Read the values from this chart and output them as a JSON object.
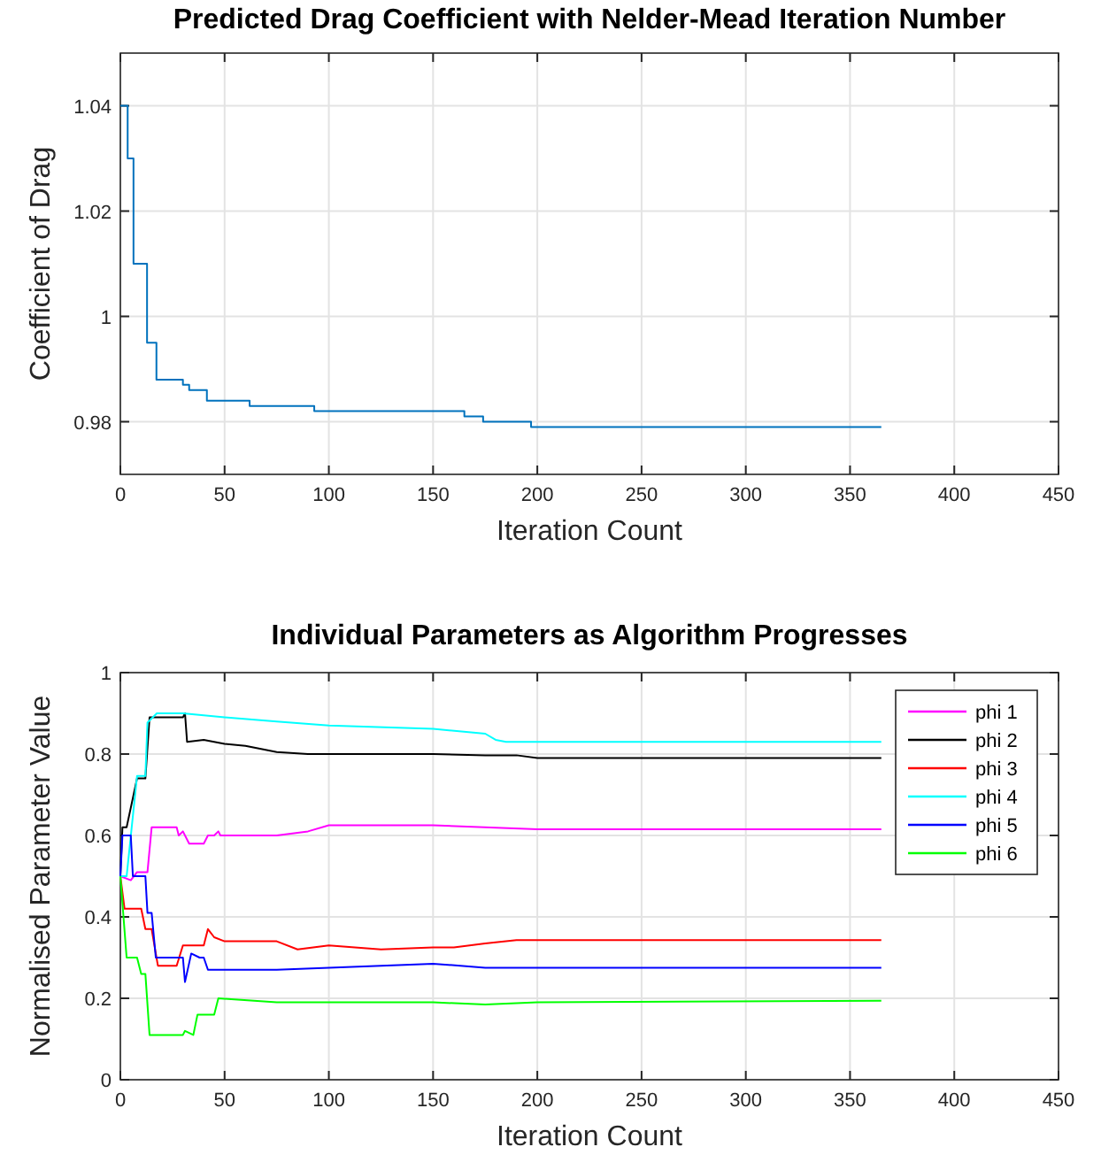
{
  "chart_data": [
    {
      "type": "step",
      "title": "Predicted Drag Coefficient with Nelder-Mead Iteration Number",
      "xlabel": "Iteration Count",
      "ylabel": "Coefficient of Drag",
      "x": [
        0,
        3.5,
        6.3,
        12.8,
        17.3,
        30,
        33,
        41.5,
        62,
        93,
        165,
        174,
        197,
        365
      ],
      "series": [
        {
          "color": "#0072bd",
          "values": [
            1.04,
            1.03,
            1.01,
            0.995,
            0.988,
            0.987,
            0.986,
            0.984,
            0.983,
            0.982,
            0.981,
            0.98,
            0.979,
            0.979
          ]
        }
      ],
      "xlim": [
        0,
        450
      ],
      "xticks": [
        0,
        50,
        100,
        150,
        200,
        250,
        300,
        350,
        400,
        450
      ],
      "ylim": [
        0.97,
        1.05
      ],
      "yticks": [
        0.98,
        1,
        1.02,
        1.04
      ],
      "grid": true,
      "legend": false
    },
    {
      "type": "line",
      "title": "Individual Parameters as Algorithm Progresses",
      "xlabel": "Iteration Count",
      "ylabel": "Normalised Parameter Value",
      "series": [
        {
          "name": "phi 1",
          "color": "#ff00ff",
          "x": [
            0,
            5,
            8,
            13,
            15,
            27,
            28,
            30,
            33,
            40,
            42,
            45,
            47,
            48,
            75,
            90,
            100,
            150,
            200,
            365
          ],
          "values": [
            0.5,
            0.49,
            0.51,
            0.51,
            0.62,
            0.62,
            0.6,
            0.61,
            0.58,
            0.58,
            0.6,
            0.6,
            0.61,
            0.6,
            0.6,
            0.61,
            0.625,
            0.625,
            0.615,
            0.615
          ]
        },
        {
          "name": "phi 2",
          "color": "#000000",
          "x": [
            0,
            1,
            3,
            8,
            12,
            14,
            30,
            31,
            32,
            40,
            50,
            60,
            75,
            90,
            100,
            125,
            150,
            175,
            190,
            200,
            365
          ],
          "values": [
            0.5,
            0.62,
            0.62,
            0.74,
            0.74,
            0.89,
            0.89,
            0.9,
            0.83,
            0.835,
            0.825,
            0.82,
            0.805,
            0.8,
            0.8,
            0.8,
            0.8,
            0.797,
            0.797,
            0.79,
            0.79
          ]
        },
        {
          "name": "phi 3",
          "color": "#ff0000",
          "x": [
            0,
            2,
            10,
            12,
            15,
            18,
            27,
            30,
            40,
            42,
            45,
            50,
            75,
            85,
            100,
            125,
            150,
            160,
            175,
            190,
            365
          ],
          "values": [
            0.5,
            0.42,
            0.42,
            0.37,
            0.37,
            0.28,
            0.28,
            0.33,
            0.33,
            0.37,
            0.35,
            0.34,
            0.34,
            0.32,
            0.33,
            0.32,
            0.325,
            0.325,
            0.335,
            0.343,
            0.343
          ]
        },
        {
          "name": "phi 4",
          "color": "#00ffff",
          "x": [
            0,
            3,
            8,
            12,
            13,
            17.5,
            30,
            50,
            75,
            100,
            150,
            175,
            180,
            185,
            365
          ],
          "values": [
            0.5,
            0.5,
            0.746,
            0.746,
            0.877,
            0.9,
            0.9,
            0.89,
            0.88,
            0.87,
            0.862,
            0.85,
            0.835,
            0.83,
            0.83
          ]
        },
        {
          "name": "phi 5",
          "color": "#0000ff",
          "x": [
            0,
            1,
            5,
            6,
            12,
            13,
            15,
            17,
            30,
            31,
            34,
            38,
            40,
            42,
            50,
            75,
            100,
            150,
            175,
            200,
            365
          ],
          "values": [
            0.5,
            0.6,
            0.6,
            0.5,
            0.5,
            0.41,
            0.41,
            0.3,
            0.3,
            0.24,
            0.31,
            0.3,
            0.3,
            0.27,
            0.27,
            0.27,
            0.275,
            0.285,
            0.275,
            0.275,
            0.275
          ]
        },
        {
          "name": "phi 6",
          "color": "#00ff00",
          "x": [
            0,
            3,
            8,
            10,
            12,
            14,
            30,
            31,
            35,
            37,
            45,
            47,
            75,
            100,
            150,
            175,
            200,
            365
          ],
          "values": [
            0.5,
            0.3,
            0.3,
            0.26,
            0.26,
            0.11,
            0.11,
            0.12,
            0.11,
            0.16,
            0.16,
            0.2,
            0.19,
            0.19,
            0.19,
            0.185,
            0.19,
            0.194
          ]
        }
      ],
      "xlim": [
        0,
        450
      ],
      "xticks": [
        0,
        50,
        100,
        150,
        200,
        250,
        300,
        350,
        400,
        450
      ],
      "ylim": [
        0,
        1
      ],
      "yticks": [
        0,
        0.2,
        0.4,
        0.6,
        0.8,
        1
      ],
      "grid": true,
      "legend": "top right"
    }
  ]
}
